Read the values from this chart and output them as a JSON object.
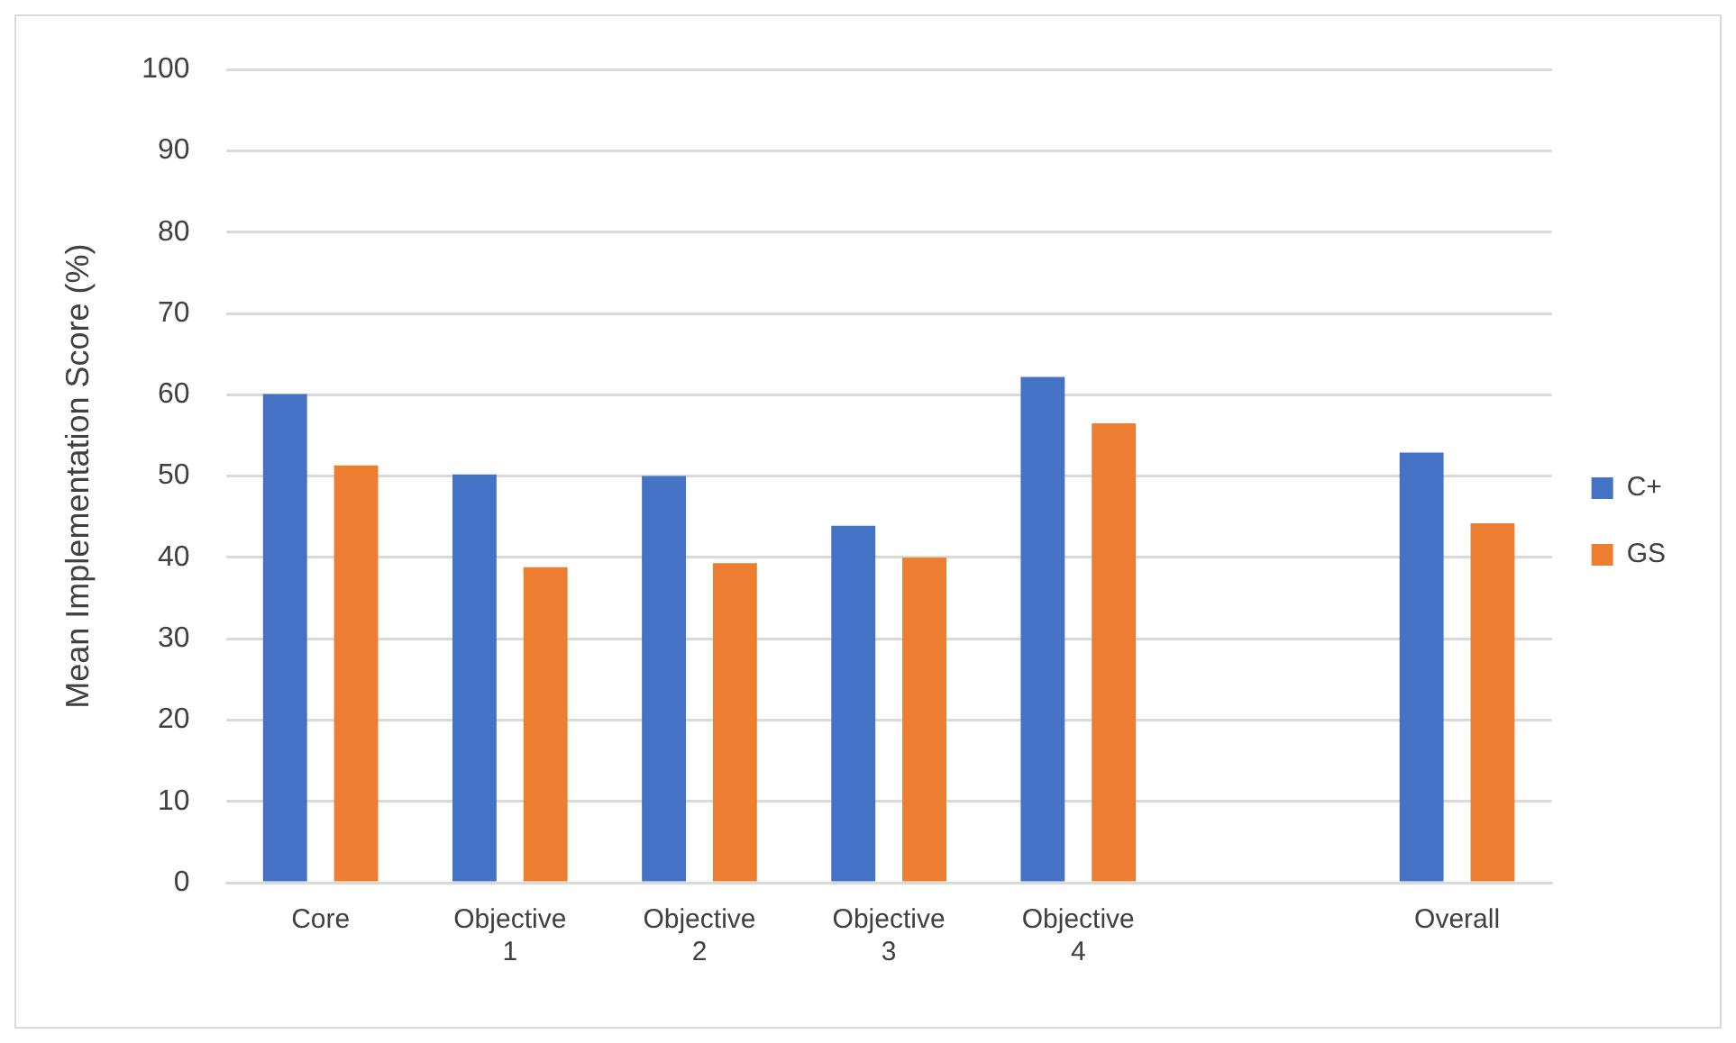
{
  "chart_data": {
    "type": "bar",
    "ylabel": "Mean Implementation Score (%)",
    "categories": [
      "Core",
      "Objective 1",
      "Objective 2",
      "Objective 3",
      "Objective 4",
      null,
      "Overall"
    ],
    "series": [
      {
        "name": "C+",
        "color": "#4472c4",
        "values": [
          60.1,
          50.2,
          50,
          43.9,
          62.2,
          null,
          52.9
        ]
      },
      {
        "name": "GS",
        "color": "#ed7d31",
        "values": [
          51.3,
          38.8,
          39.3,
          40,
          56.5,
          null,
          44.2
        ]
      }
    ],
    "ylim": [
      0,
      100
    ],
    "yticks": [
      0,
      10,
      20,
      30,
      40,
      50,
      60,
      70,
      80,
      90,
      100
    ],
    "grid": "y",
    "legend": "right"
  }
}
